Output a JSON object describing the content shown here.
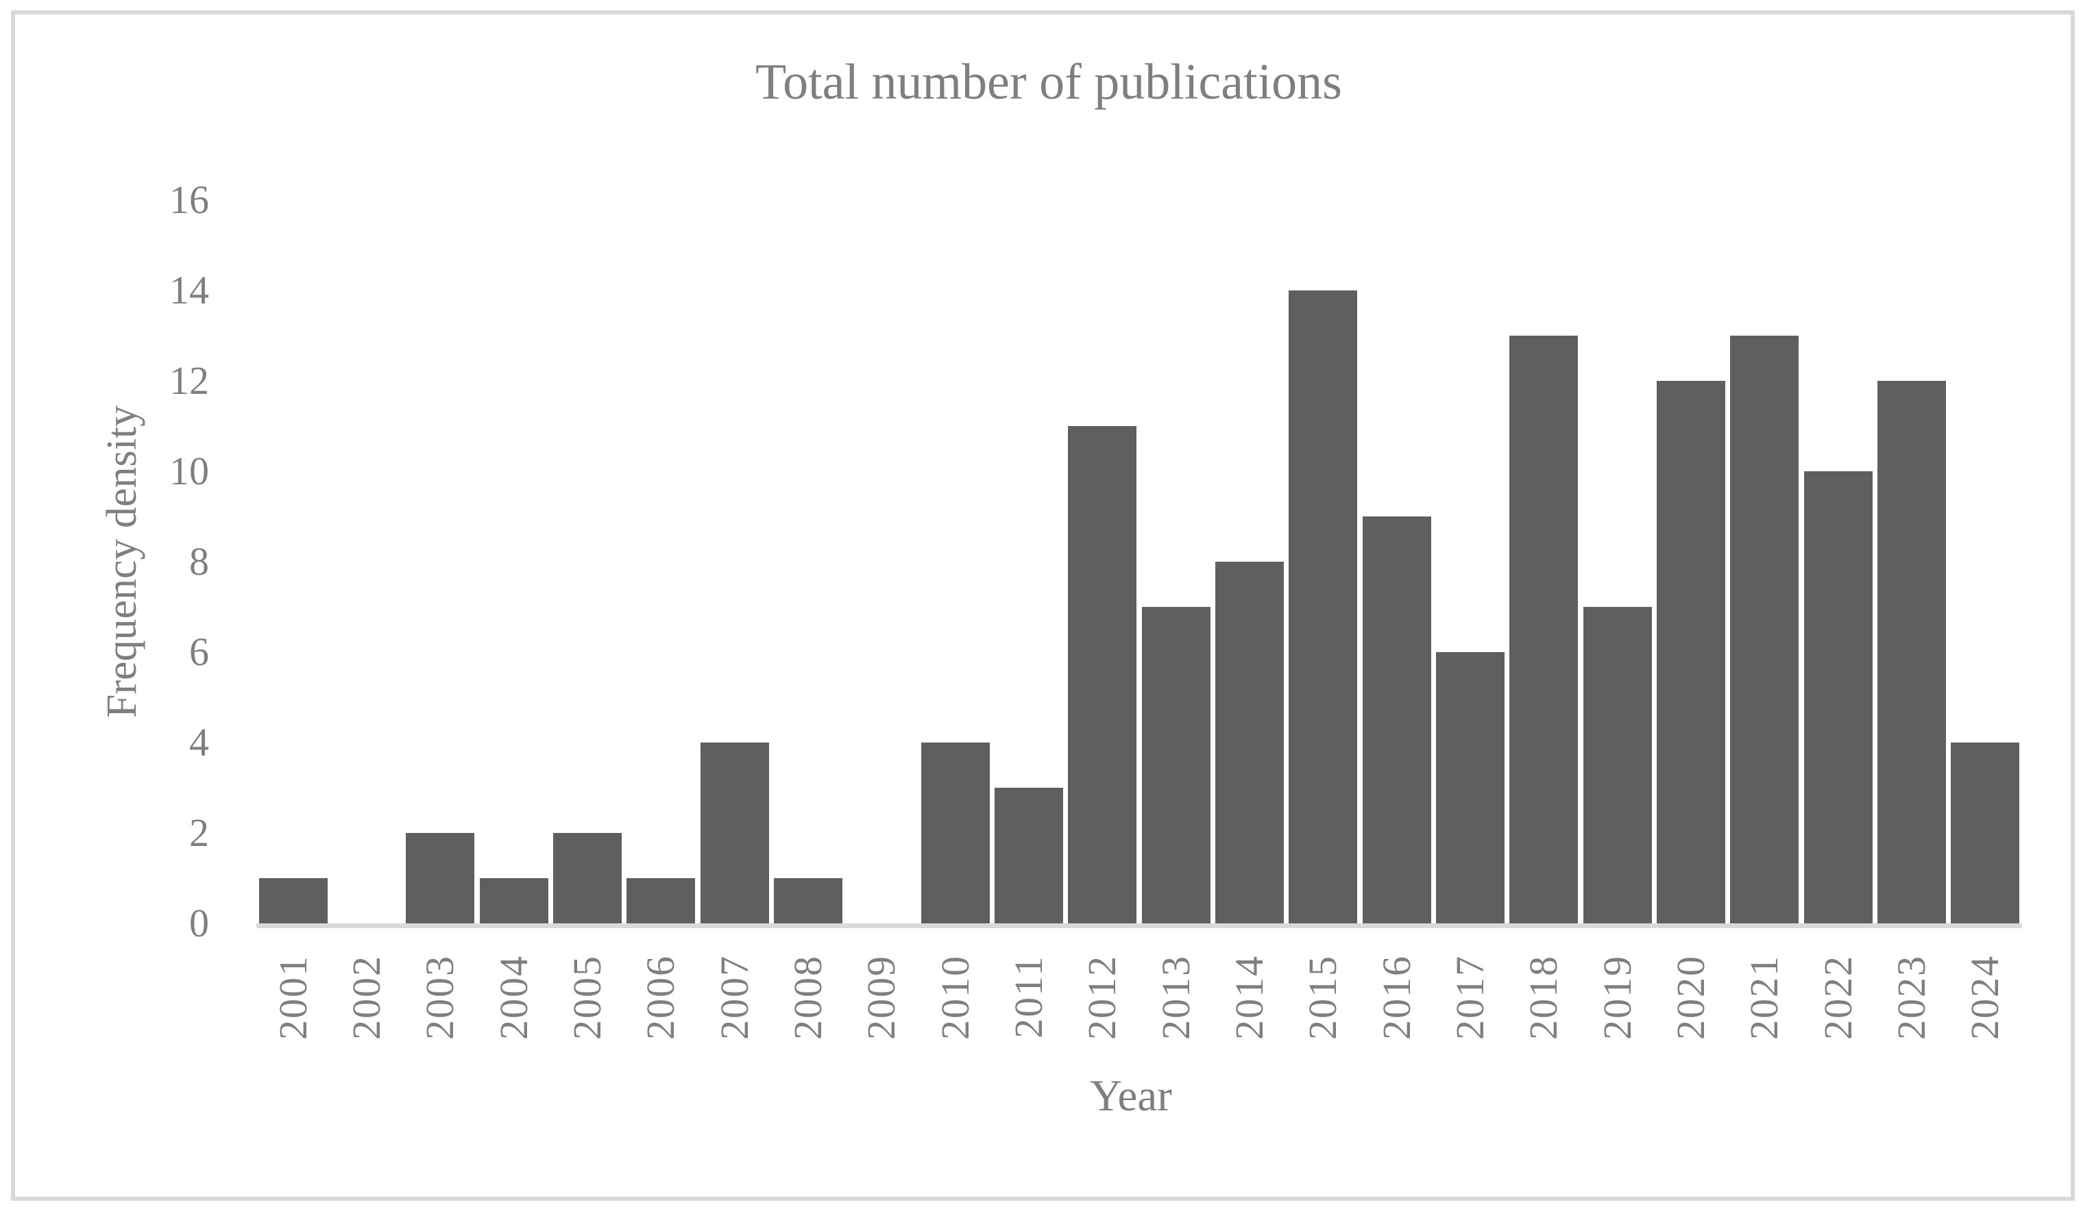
{
  "chart_data": {
    "type": "bar",
    "title": "Total number of publications",
    "xlabel": "Year",
    "ylabel": "Frequency density",
    "categories": [
      "2001",
      "2002",
      "2003",
      "2004",
      "2005",
      "2006",
      "2007",
      "2008",
      "2009",
      "2010",
      "2011",
      "2012",
      "2013",
      "2014",
      "2015",
      "2016",
      "2017",
      "2018",
      "2019",
      "2020",
      "2021",
      "2022",
      "2023",
      "2024"
    ],
    "values": [
      1,
      0,
      2,
      1,
      2,
      1,
      4,
      1,
      0,
      4,
      3,
      11,
      7,
      8,
      14,
      9,
      6,
      13,
      7,
      12,
      13,
      10,
      12,
      4
    ],
    "ylim": [
      0,
      16
    ],
    "ytick_step": 2,
    "ytick_labels": [
      "0",
      "2",
      "4",
      "6",
      "8",
      "10",
      "12",
      "14",
      "16"
    ],
    "grid": false,
    "legend": "none",
    "colors": {
      "bar": "#5f5f5f",
      "text": "#7f7f7f",
      "axis_line": "#d9d9d9",
      "frame_border": "#d9d9d9",
      "background": "#ffffff"
    }
  }
}
